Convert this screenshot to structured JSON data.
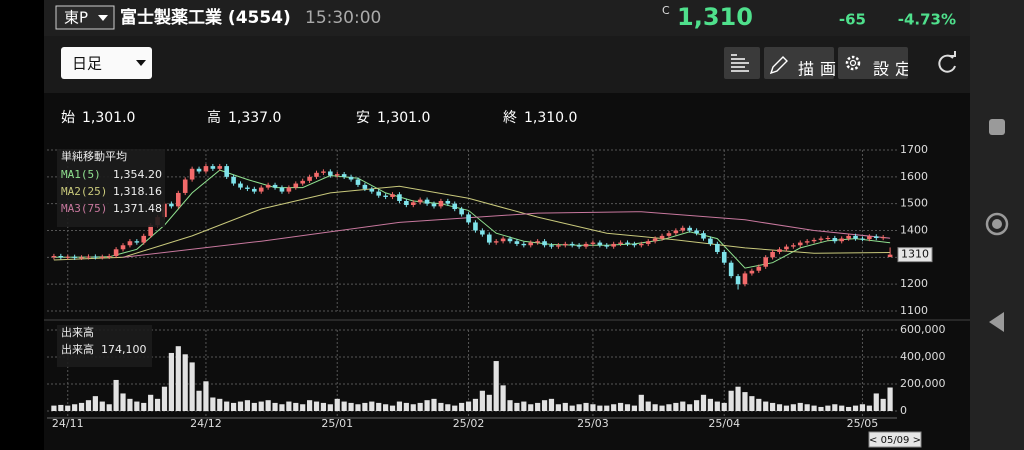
{
  "header": {
    "market": "東P",
    "name": "富士製薬工業 (4554)",
    "time": "15:30:00",
    "flag": "C",
    "price": "1,310",
    "change": "-65",
    "change_pct": "-4.73%"
  },
  "toolbar": {
    "period": "日足",
    "draw": "描画",
    "settings": "設定"
  },
  "ohlc": [
    {
      "label": "始",
      "value": "1,301.0"
    },
    {
      "label": "高",
      "value": "1,337.0"
    },
    {
      "label": "安",
      "value": "1,301.0"
    },
    {
      "label": "終",
      "value": "1,310.0"
    }
  ],
  "chart_data": [
    {
      "type": "candlestick",
      "legend_title": "単純移動平均",
      "xlim": [
        -1,
        122
      ],
      "ylim": [
        1100,
        1700
      ],
      "yticks": [
        1100,
        1200,
        1300,
        1400,
        1500,
        1600,
        1700
      ],
      "grid": true,
      "up_color": "#f26a6a",
      "down_color": "#7fe3ea",
      "last_price": 1310,
      "open": [
        1300,
        1305,
        1300,
        1302,
        1298,
        1300,
        1303,
        1300,
        1302,
        1305,
        1330,
        1345,
        1360,
        1355,
        1380,
        1420,
        1450,
        1500,
        1490,
        1540,
        1590,
        1630,
        1620,
        1640,
        1630,
        1640,
        1600,
        1575,
        1560,
        1555,
        1545,
        1560,
        1570,
        1560,
        1545,
        1560,
        1575,
        1585,
        1600,
        1615,
        1620,
        1605,
        1610,
        1600,
        1590,
        1570,
        1555,
        1545,
        1530,
        1525,
        1535,
        1510,
        1495,
        1505,
        1515,
        1500,
        1490,
        1510,
        1500,
        1480,
        1460,
        1430,
        1400,
        1385,
        1355,
        1360,
        1370,
        1360,
        1350,
        1345,
        1355,
        1360,
        1345,
        1340,
        1345,
        1350,
        1345,
        1340,
        1350,
        1355,
        1345,
        1340,
        1350,
        1355,
        1350,
        1345,
        1350,
        1360,
        1370,
        1380,
        1390,
        1400,
        1410,
        1400,
        1390,
        1370,
        1350,
        1320,
        1280,
        1230,
        1200,
        1240,
        1250,
        1265,
        1300,
        1320,
        1330,
        1340,
        1345,
        1355,
        1360,
        1365,
        1370,
        1372,
        1360,
        1370,
        1380,
        1370,
        1368,
        1378,
        1372,
        1301
      ],
      "high": [
        1313,
        1313,
        1310,
        1310,
        1308,
        1311,
        1311,
        1310,
        1313,
        1338,
        1353,
        1368,
        1368,
        1388,
        1428,
        1458,
        1508,
        1508,
        1548,
        1598,
        1638,
        1638,
        1648,
        1648,
        1648,
        1648,
        1608,
        1583,
        1568,
        1563,
        1568,
        1578,
        1578,
        1568,
        1568,
        1583,
        1593,
        1608,
        1623,
        1628,
        1628,
        1618,
        1618,
        1608,
        1598,
        1578,
        1563,
        1553,
        1538,
        1543,
        1543,
        1518,
        1513,
        1523,
        1523,
        1508,
        1518,
        1518,
        1508,
        1488,
        1468,
        1438,
        1408,
        1393,
        1368,
        1378,
        1378,
        1368,
        1358,
        1363,
        1368,
        1368,
        1353,
        1353,
        1358,
        1358,
        1353,
        1358,
        1363,
        1363,
        1353,
        1358,
        1363,
        1363,
        1358,
        1358,
        1368,
        1378,
        1388,
        1398,
        1408,
        1418,
        1418,
        1408,
        1398,
        1378,
        1358,
        1328,
        1288,
        1238,
        1248,
        1258,
        1273,
        1308,
        1328,
        1338,
        1348,
        1353,
        1363,
        1368,
        1373,
        1378,
        1380,
        1380,
        1378,
        1388,
        1388,
        1378,
        1386,
        1386,
        1383,
        1337
      ],
      "low": [
        1292,
        1292,
        1292,
        1290,
        1290,
        1292,
        1292,
        1292,
        1294,
        1297,
        1322,
        1337,
        1347,
        1347,
        1372,
        1412,
        1442,
        1482,
        1482,
        1532,
        1582,
        1612,
        1612,
        1622,
        1622,
        1592,
        1567,
        1552,
        1547,
        1537,
        1537,
        1552,
        1552,
        1537,
        1537,
        1552,
        1567,
        1577,
        1592,
        1607,
        1597,
        1597,
        1592,
        1582,
        1562,
        1547,
        1537,
        1522,
        1517,
        1517,
        1502,
        1487,
        1487,
        1497,
        1492,
        1482,
        1482,
        1492,
        1472,
        1452,
        1422,
        1392,
        1377,
        1347,
        1347,
        1352,
        1352,
        1342,
        1337,
        1337,
        1347,
        1337,
        1332,
        1332,
        1337,
        1337,
        1332,
        1332,
        1342,
        1337,
        1332,
        1332,
        1342,
        1342,
        1337,
        1337,
        1342,
        1352,
        1362,
        1372,
        1382,
        1392,
        1392,
        1382,
        1362,
        1342,
        1312,
        1272,
        1222,
        1180,
        1192,
        1232,
        1242,
        1257,
        1292,
        1312,
        1322,
        1332,
        1337,
        1347,
        1352,
        1357,
        1362,
        1352,
        1352,
        1362,
        1362,
        1360,
        1360,
        1364,
        1364,
        1301
      ],
      "close": [
        1305,
        1300,
        1302,
        1298,
        1300,
        1303,
        1300,
        1302,
        1305,
        1330,
        1345,
        1360,
        1355,
        1380,
        1420,
        1450,
        1500,
        1490,
        1540,
        1590,
        1630,
        1620,
        1640,
        1630,
        1640,
        1600,
        1575,
        1560,
        1555,
        1545,
        1560,
        1570,
        1560,
        1545,
        1560,
        1575,
        1585,
        1600,
        1615,
        1620,
        1605,
        1610,
        1600,
        1590,
        1570,
        1555,
        1545,
        1530,
        1525,
        1535,
        1510,
        1495,
        1505,
        1515,
        1500,
        1490,
        1510,
        1500,
        1480,
        1460,
        1430,
        1400,
        1385,
        1355,
        1360,
        1370,
        1360,
        1350,
        1345,
        1355,
        1360,
        1345,
        1340,
        1345,
        1350,
        1345,
        1340,
        1350,
        1355,
        1345,
        1340,
        1350,
        1355,
        1350,
        1345,
        1350,
        1360,
        1370,
        1380,
        1390,
        1400,
        1410,
        1400,
        1390,
        1370,
        1350,
        1320,
        1280,
        1230,
        1200,
        1240,
        1250,
        1265,
        1300,
        1320,
        1330,
        1340,
        1345,
        1355,
        1360,
        1365,
        1370,
        1372,
        1360,
        1370,
        1380,
        1370,
        1368,
        1378,
        1372,
        1375,
        1310
      ],
      "series": [
        {
          "name": "MA1(5)",
          "color": "#8fe08f",
          "latest_label": "1,354.20",
          "x": [
            0,
            4,
            8,
            12,
            16,
            20,
            24,
            28,
            32,
            36,
            40,
            44,
            48,
            52,
            56,
            60,
            64,
            68,
            72,
            76,
            80,
            84,
            88,
            92,
            96,
            100,
            104,
            108,
            112,
            116,
            121
          ],
          "values": [
            1300,
            1301,
            1302,
            1330,
            1420,
            1540,
            1625,
            1590,
            1560,
            1560,
            1605,
            1595,
            1540,
            1510,
            1500,
            1475,
            1390,
            1360,
            1348,
            1345,
            1345,
            1350,
            1365,
            1395,
            1370,
            1260,
            1280,
            1335,
            1362,
            1370,
            1354.2
          ]
        },
        {
          "name": "MA2(25)",
          "color": "#c9c97c",
          "latest_label": "1,318.16",
          "x": [
            0,
            10,
            20,
            30,
            40,
            50,
            60,
            70,
            80,
            90,
            100,
            110,
            121
          ],
          "values": [
            1290,
            1300,
            1380,
            1480,
            1540,
            1565,
            1520,
            1450,
            1390,
            1365,
            1335,
            1315,
            1318.16
          ]
        },
        {
          "name": "MA3(75)",
          "color": "#c8789e",
          "latest_label": "1,371.48",
          "x": [
            10,
            30,
            50,
            70,
            85,
            100,
            110,
            121
          ],
          "values": [
            1300,
            1360,
            1430,
            1465,
            1470,
            1440,
            1400,
            1371.48
          ]
        }
      ]
    },
    {
      "type": "bar",
      "title": "出来高",
      "info_label": "出来高",
      "info_value": "174,100",
      "color": "#e2e2e2",
      "grid": true,
      "xlim": [
        -1,
        122
      ],
      "xticks": [
        {
          "value": 2,
          "label": "24/11"
        },
        {
          "value": 22,
          "label": "24/12"
        },
        {
          "value": 41,
          "label": "25/01"
        },
        {
          "value": 60,
          "label": "25/02"
        },
        {
          "value": 78,
          "label": "25/03"
        },
        {
          "value": 97,
          "label": "25/04"
        },
        {
          "value": 117,
          "label": "25/05"
        }
      ],
      "ylim": [
        0,
        600000
      ],
      "yticks": [
        0,
        {
          "value": 200000,
          "label": "200,000"
        },
        {
          "value": 400000,
          "label": "400,000"
        },
        {
          "value": 600000,
          "label": "600,000"
        }
      ],
      "values": [
        40000,
        45000,
        40000,
        50000,
        60000,
        80000,
        110000,
        70000,
        50000,
        230000,
        130000,
        90000,
        70000,
        60000,
        120000,
        90000,
        180000,
        430000,
        480000,
        420000,
        360000,
        150000,
        220000,
        100000,
        90000,
        70000,
        60000,
        70000,
        80000,
        60000,
        70000,
        80000,
        60000,
        50000,
        70000,
        60000,
        50000,
        80000,
        70000,
        60000,
        50000,
        90000,
        70000,
        60000,
        50000,
        60000,
        70000,
        60000,
        50000,
        40000,
        70000,
        60000,
        50000,
        60000,
        80000,
        90000,
        60000,
        50000,
        40000,
        60000,
        70000,
        90000,
        150000,
        120000,
        370000,
        190000,
        80000,
        60000,
        70000,
        50000,
        60000,
        80000,
        90000,
        50000,
        60000,
        40000,
        50000,
        60000,
        50000,
        40000,
        40000,
        50000,
        60000,
        50000,
        40000,
        120000,
        70000,
        50000,
        40000,
        50000,
        60000,
        70000,
        50000,
        80000,
        120000,
        90000,
        70000,
        60000,
        150000,
        180000,
        140000,
        110000,
        90000,
        70000,
        60000,
        50000,
        40000,
        50000,
        60000,
        50000,
        40000,
        30000,
        40000,
        50000,
        40000,
        30000,
        40000,
        50000,
        40000,
        130000,
        90000,
        174100
      ]
    }
  ],
  "footer": {
    "date": "< 05/09 >"
  }
}
